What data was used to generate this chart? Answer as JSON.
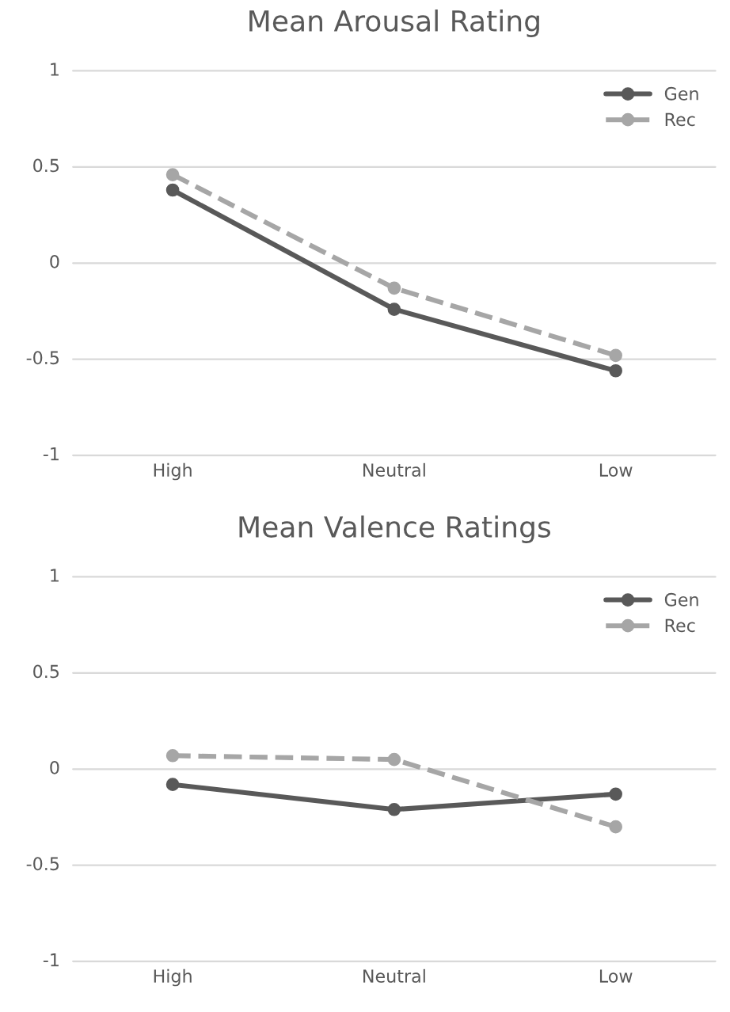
{
  "chart_data": [
    {
      "type": "line",
      "title": "Mean Arousal Rating",
      "categories": [
        "High",
        "Neutral",
        "Low"
      ],
      "series": [
        {
          "name": "Gen",
          "color": "#595959",
          "values": [
            0.38,
            -0.24,
            -0.56
          ],
          "line_style": "solid"
        },
        {
          "name": "Rec",
          "color": "#a6a6a6",
          "values": [
            0.46,
            -0.13,
            -0.48
          ],
          "line_style": "dashed"
        }
      ],
      "ylim": [
        -1,
        1
      ],
      "yticks": [
        -1,
        -0.5,
        0,
        0.5,
        1
      ],
      "grid": "y",
      "legend": "top right",
      "marker": "circle"
    },
    {
      "type": "line",
      "title": "Mean Valence Ratings",
      "categories": [
        "High",
        "Neutral",
        "Low"
      ],
      "series": [
        {
          "name": "Gen",
          "color": "#595959",
          "values": [
            -0.08,
            -0.21,
            -0.13
          ],
          "line_style": "solid"
        },
        {
          "name": "Rec",
          "color": "#a6a6a6",
          "values": [
            0.07,
            0.05,
            -0.3
          ],
          "line_style": "dashed"
        }
      ],
      "ylim": [
        -1,
        1
      ],
      "yticks": [
        -1,
        -0.5,
        0,
        0.5,
        1
      ],
      "grid": "y",
      "legend": "top right",
      "marker": "circle"
    }
  ]
}
